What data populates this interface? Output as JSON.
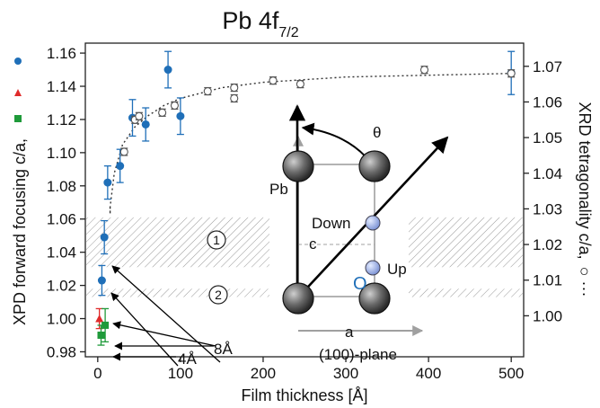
{
  "chart_data": {
    "type": "scatter",
    "title": "Pb 4f",
    "title_subscript": "7/2",
    "xlabel": "Film thickness [Å]",
    "ylabel": "XPD forward focusing c/a,",
    "y2label": "XRD tetragonality c/a,",
    "y2label_markers": "○ ···",
    "xlim": [
      -15,
      515
    ],
    "ylim": [
      0.977,
      1.166
    ],
    "y2lim": [
      0.9885,
      1.0765
    ],
    "x_ticks": [
      "0",
      "100",
      "200",
      "300",
      "400",
      "500"
    ],
    "y_ticks": [
      "0.98",
      "1.00",
      "1.02",
      "1.04",
      "1.06",
      "1.08",
      "1.10",
      "1.12",
      "1.14",
      "1.16"
    ],
    "y2_ticks": [
      "1.00",
      "1.01",
      "1.02",
      "1.03",
      "1.04",
      "1.05",
      "1.06",
      "1.07"
    ],
    "grid": false,
    "legend_position": "left of y-axis (marker symbols beside ylabel)",
    "colors": {
      "xpd_circle": "#1f6fb8",
      "xpd_triangle": "#e02b2b",
      "xpd_square": "#1f9a3a",
      "xrd": "#555555",
      "fit": "#333333",
      "hatch": "#9a9a9a"
    },
    "series": [
      {
        "marker": "filled-circle",
        "axis": "left",
        "points": [
          {
            "x": 5,
            "y": 1.023,
            "err": 0.009
          },
          {
            "x": 8,
            "y": 1.049,
            "err": 0.01
          },
          {
            "x": 12,
            "y": 1.082,
            "err": 0.01
          },
          {
            "x": 27,
            "y": 1.092,
            "err": 0.01
          },
          {
            "x": 42,
            "y": 1.121,
            "err": 0.011
          },
          {
            "x": 58,
            "y": 1.117,
            "err": 0.01
          },
          {
            "x": 85,
            "y": 1.15,
            "err": 0.011
          },
          {
            "x": 100,
            "y": 1.122,
            "err": 0.011
          },
          {
            "x": 500,
            "y": 1.148,
            "err": 0.013
          }
        ]
      },
      {
        "marker": "filled-triangle",
        "axis": "left",
        "points": [
          {
            "x": 2,
            "y": 1.0,
            "err": 0.006
          }
        ]
      },
      {
        "marker": "filled-square",
        "axis": "left",
        "points": [
          {
            "x": 4,
            "y": 0.99,
            "err": 0.006
          },
          {
            "x": 9,
            "y": 0.996,
            "err": 0.01
          }
        ]
      },
      {
        "marker": "open-circle",
        "axis": "right",
        "points": [
          {
            "x": 32,
            "y": 1.046,
            "err": 0.001
          },
          {
            "x": 45,
            "y": 1.055,
            "err": 0.001
          },
          {
            "x": 50,
            "y": 1.056,
            "err": 0.001
          },
          {
            "x": 78,
            "y": 1.057,
            "err": 0.001
          },
          {
            "x": 93,
            "y": 1.059,
            "err": 0.001
          },
          {
            "x": 133,
            "y": 1.063,
            "err": 0.001
          },
          {
            "x": 165,
            "y": 1.064,
            "err": 0.001
          },
          {
            "x": 165,
            "y": 1.061,
            "err": 0.001
          },
          {
            "x": 212,
            "y": 1.066,
            "err": 0.001
          },
          {
            "x": 245,
            "y": 1.065,
            "err": 0.001
          },
          {
            "x": 395,
            "y": 1.069,
            "err": 0.001
          },
          {
            "x": 500,
            "y": 1.068,
            "err": 0.001
          }
        ]
      },
      {
        "marker": "dotted-fit-curve",
        "axis": "right",
        "points": [
          {
            "x": 15,
            "y": 1.0305
          },
          {
            "x": 20,
            "y": 1.04
          },
          {
            "x": 30,
            "y": 1.048
          },
          {
            "x": 45,
            "y": 1.053
          },
          {
            "x": 60,
            "y": 1.056
          },
          {
            "x": 80,
            "y": 1.059
          },
          {
            "x": 100,
            "y": 1.061
          },
          {
            "x": 150,
            "y": 1.064
          },
          {
            "x": 200,
            "y": 1.0655
          },
          {
            "x": 300,
            "y": 1.067
          },
          {
            "x": 400,
            "y": 1.0675
          },
          {
            "x": 500,
            "y": 1.068
          }
        ]
      }
    ],
    "bands": [
      {
        "label": "1",
        "ymin": 1.031,
        "ymax": 1.061
      },
      {
        "label": "2",
        "ymin": 1.013,
        "ymax": 1.018
      }
    ],
    "annotations": {
      "label_8A": "8Å",
      "label_4A": "4Å",
      "inset_pb": "Pb",
      "inset_theta": "θ",
      "inset_down": "Down",
      "inset_up": "Up",
      "inset_c": "c",
      "inset_a": "a",
      "inset_origin": "O",
      "inset_plane": "(100)-plane"
    }
  }
}
